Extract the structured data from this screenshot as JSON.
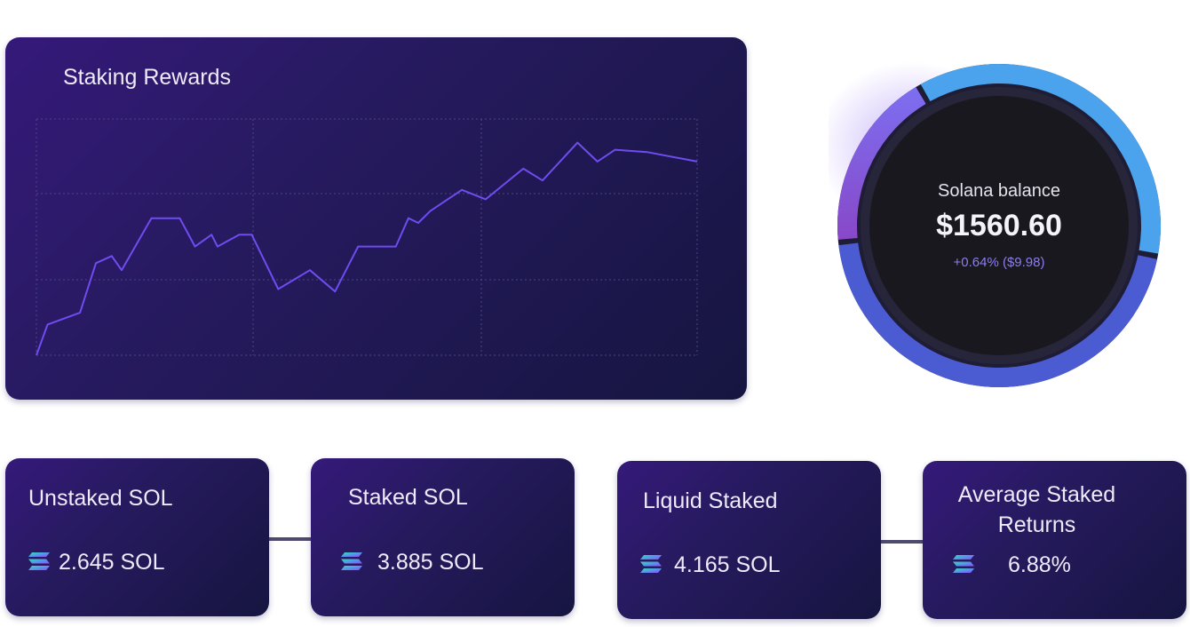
{
  "chart_data": {
    "type": "line",
    "title": "Staking Rewards",
    "xlabel": "",
    "ylabel": "",
    "grid": true,
    "legend": "none",
    "ylim": [
      0,
      100
    ],
    "xlim": [
      0,
      100
    ],
    "series_color": "#6f4cf0",
    "x": [
      0,
      1.7,
      6.6,
      9,
      11.4,
      12.9,
      17.4,
      21.7,
      24,
      26.5,
      27.4,
      30.7,
      32.6,
      36.6,
      41.4,
      45.2,
      48.7,
      54.4,
      56.3,
      57.8,
      59.6,
      64.4,
      68,
      73.7,
      76.6,
      81.9,
      84.9,
      87.6,
      92.4,
      100
    ],
    "y": [
      0,
      13,
      18,
      39,
      42,
      36,
      58,
      58,
      46,
      51,
      46,
      51,
      51,
      28,
      36,
      27,
      46,
      46,
      58,
      56,
      61,
      70,
      66,
      79,
      74,
      90,
      82,
      87,
      86,
      82
    ]
  },
  "stats": [
    {
      "title": "Unstaked SOL",
      "value": "2.645 SOL",
      "icon": "solana-icon"
    },
    {
      "title": "Staked SOL",
      "value": "3.885 SOL",
      "icon": "solana-icon"
    },
    {
      "title": "Liquid Staked",
      "value": "4.165 SOL",
      "icon": "solana-icon"
    },
    {
      "title": "Average Staked Returns",
      "value": "6.88%",
      "icon": "solana-icon"
    }
  ],
  "balance": {
    "label": "Solana balance",
    "amount": "$1560.60",
    "change": "+0.64% ($9.98)"
  },
  "colors": {
    "accent": "#6f4cf0",
    "ring_blue": "#4aa3ec",
    "ring_indigo": "#4b5bd2",
    "ring_violet": "#8a5fe6",
    "card_dark": "#161540",
    "card_light": "#35197a"
  }
}
